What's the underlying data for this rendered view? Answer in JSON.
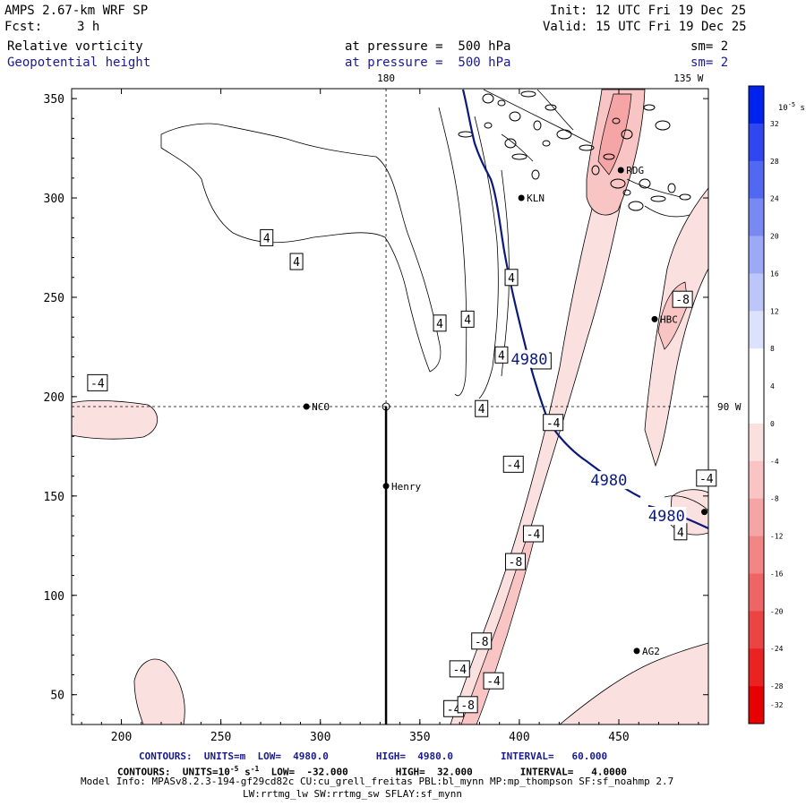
{
  "header": {
    "model": "AMPS 2.67-km WRF SP",
    "init": "Init: 12 UTC Fri 19 Dec 25",
    "fcst_label": "Fcst:",
    "fcst_value": "3 h",
    "valid": "Valid: 15 UTC Fri 19 Dec 25",
    "field1": "Relative vorticity",
    "field1_level": "at pressure =  500 hPa",
    "field1_sm": "sm= 2",
    "field2": "Geopotential height",
    "field2_level": "at pressure =  500 hPa",
    "field2_sm": "sm= 2"
  },
  "footer": {
    "line1": "CONTOURS:  UNITS=m  LOW=  4980.0        HIGH=  4980.0        INTERVAL=   60.000",
    "line2_pre": "CONTOURS:  UNITS=10",
    "line2_exp": "-5",
    "line2_post": " s",
    "line2_exp2": "-1",
    "line2_rest": "  LOW=  -32.000        HIGH=  32.000        INTERVAL=   4.0000",
    "line3": "Model Info: MPASv8.2.3-194-gf29cd82c CU:cu_grell_freitas PBL:bl_mynn MP:mp_thompson SF:sf_noahmp 2.7",
    "line4": "LW:rrtmg_lw SW:rrtmg_sw SFLAY:sf_mynn"
  },
  "colors": {
    "height_contour": "#0b1a7a",
    "frame": "#000000"
  },
  "chart_data": {
    "type": "contour-map",
    "xlim": [
      175,
      495
    ],
    "ylim": [
      35,
      355
    ],
    "x_ticks": [
      200,
      250,
      300,
      350,
      400,
      450
    ],
    "y_ticks": [
      50,
      100,
      150,
      200,
      250,
      300,
      350
    ],
    "top_axis_labels": [
      {
        "text": "180",
        "x": 333
      },
      {
        "text": "135 W",
        "x": 485
      }
    ],
    "right_axis_labels": [
      {
        "text": "90 W",
        "y": 195
      }
    ],
    "reference_lines": {
      "vertical_x": 333,
      "horizontal_y": 195
    },
    "height_contour_labels": [
      {
        "text": "4980",
        "x": 405,
        "y": 219
      },
      {
        "text": "4980",
        "x": 445,
        "y": 158
      },
      {
        "text": "4980",
        "x": 474,
        "y": 140
      }
    ],
    "vorticity_labels": [
      {
        "text": "4",
        "x": 273,
        "y": 280
      },
      {
        "text": "4",
        "x": 288,
        "y": 268
      },
      {
        "text": "4",
        "x": 396,
        "y": 260
      },
      {
        "text": "4",
        "x": 360,
        "y": 237
      },
      {
        "text": "4",
        "x": 374,
        "y": 239
      },
      {
        "text": "4",
        "x": 391,
        "y": 221
      },
      {
        "text": "4",
        "x": 381,
        "y": 194
      },
      {
        "text": "4",
        "x": 481,
        "y": 132
      },
      {
        "text": "-4",
        "x": 188,
        "y": 207
      },
      {
        "text": "-4",
        "x": 411,
        "y": 218
      },
      {
        "text": "-4",
        "x": 417,
        "y": 187
      },
      {
        "text": "-4",
        "x": 397,
        "y": 166
      },
      {
        "text": "-4",
        "x": 494,
        "y": 159
      },
      {
        "text": "-4",
        "x": 407,
        "y": 131
      },
      {
        "text": "-4",
        "x": 370,
        "y": 63
      },
      {
        "text": "-4",
        "x": 387,
        "y": 57
      },
      {
        "text": "-4",
        "x": 367,
        "y": 43
      },
      {
        "text": "-8",
        "x": 482,
        "y": 249
      },
      {
        "text": "-8",
        "x": 398,
        "y": 117
      },
      {
        "text": "-8",
        "x": 381,
        "y": 77
      },
      {
        "text": "-8",
        "x": 374,
        "y": 45
      }
    ],
    "stations": [
      {
        "name": "KLN",
        "x": 401,
        "y": 300
      },
      {
        "name": "RDG",
        "x": 451,
        "y": 314
      },
      {
        "name": "HBC",
        "x": 468,
        "y": 239
      },
      {
        "name": "NCO",
        "x": 293,
        "y": 195
      },
      {
        "name": "Henry",
        "x": 333,
        "y": 155
      },
      {
        "name": "AG2",
        "x": 459,
        "y": 72
      },
      {
        "name": "",
        "x": 493,
        "y": 142
      }
    ],
    "colorbar": {
      "unit_base": "10",
      "unit_exp": "-5",
      "unit_s": " s",
      "unit_exp2": "-1",
      "levels": [
        32,
        28,
        24,
        20,
        16,
        12,
        8,
        4,
        0,
        -4,
        -8,
        -12,
        -16,
        -20,
        -24,
        -28,
        -32
      ],
      "colors": [
        "#0022ee",
        "#2f46f0",
        "#5268f2",
        "#7889f4",
        "#9ca9f6",
        "#bcc6f8",
        "#dce2fb",
        "#ffffff",
        "#ffffff",
        "#fbe0e0",
        "#f8c4c4",
        "#f5a5a5",
        "#f28686",
        "#ef6464",
        "#ec4343",
        "#ea2222",
        "#e80000"
      ]
    }
  }
}
